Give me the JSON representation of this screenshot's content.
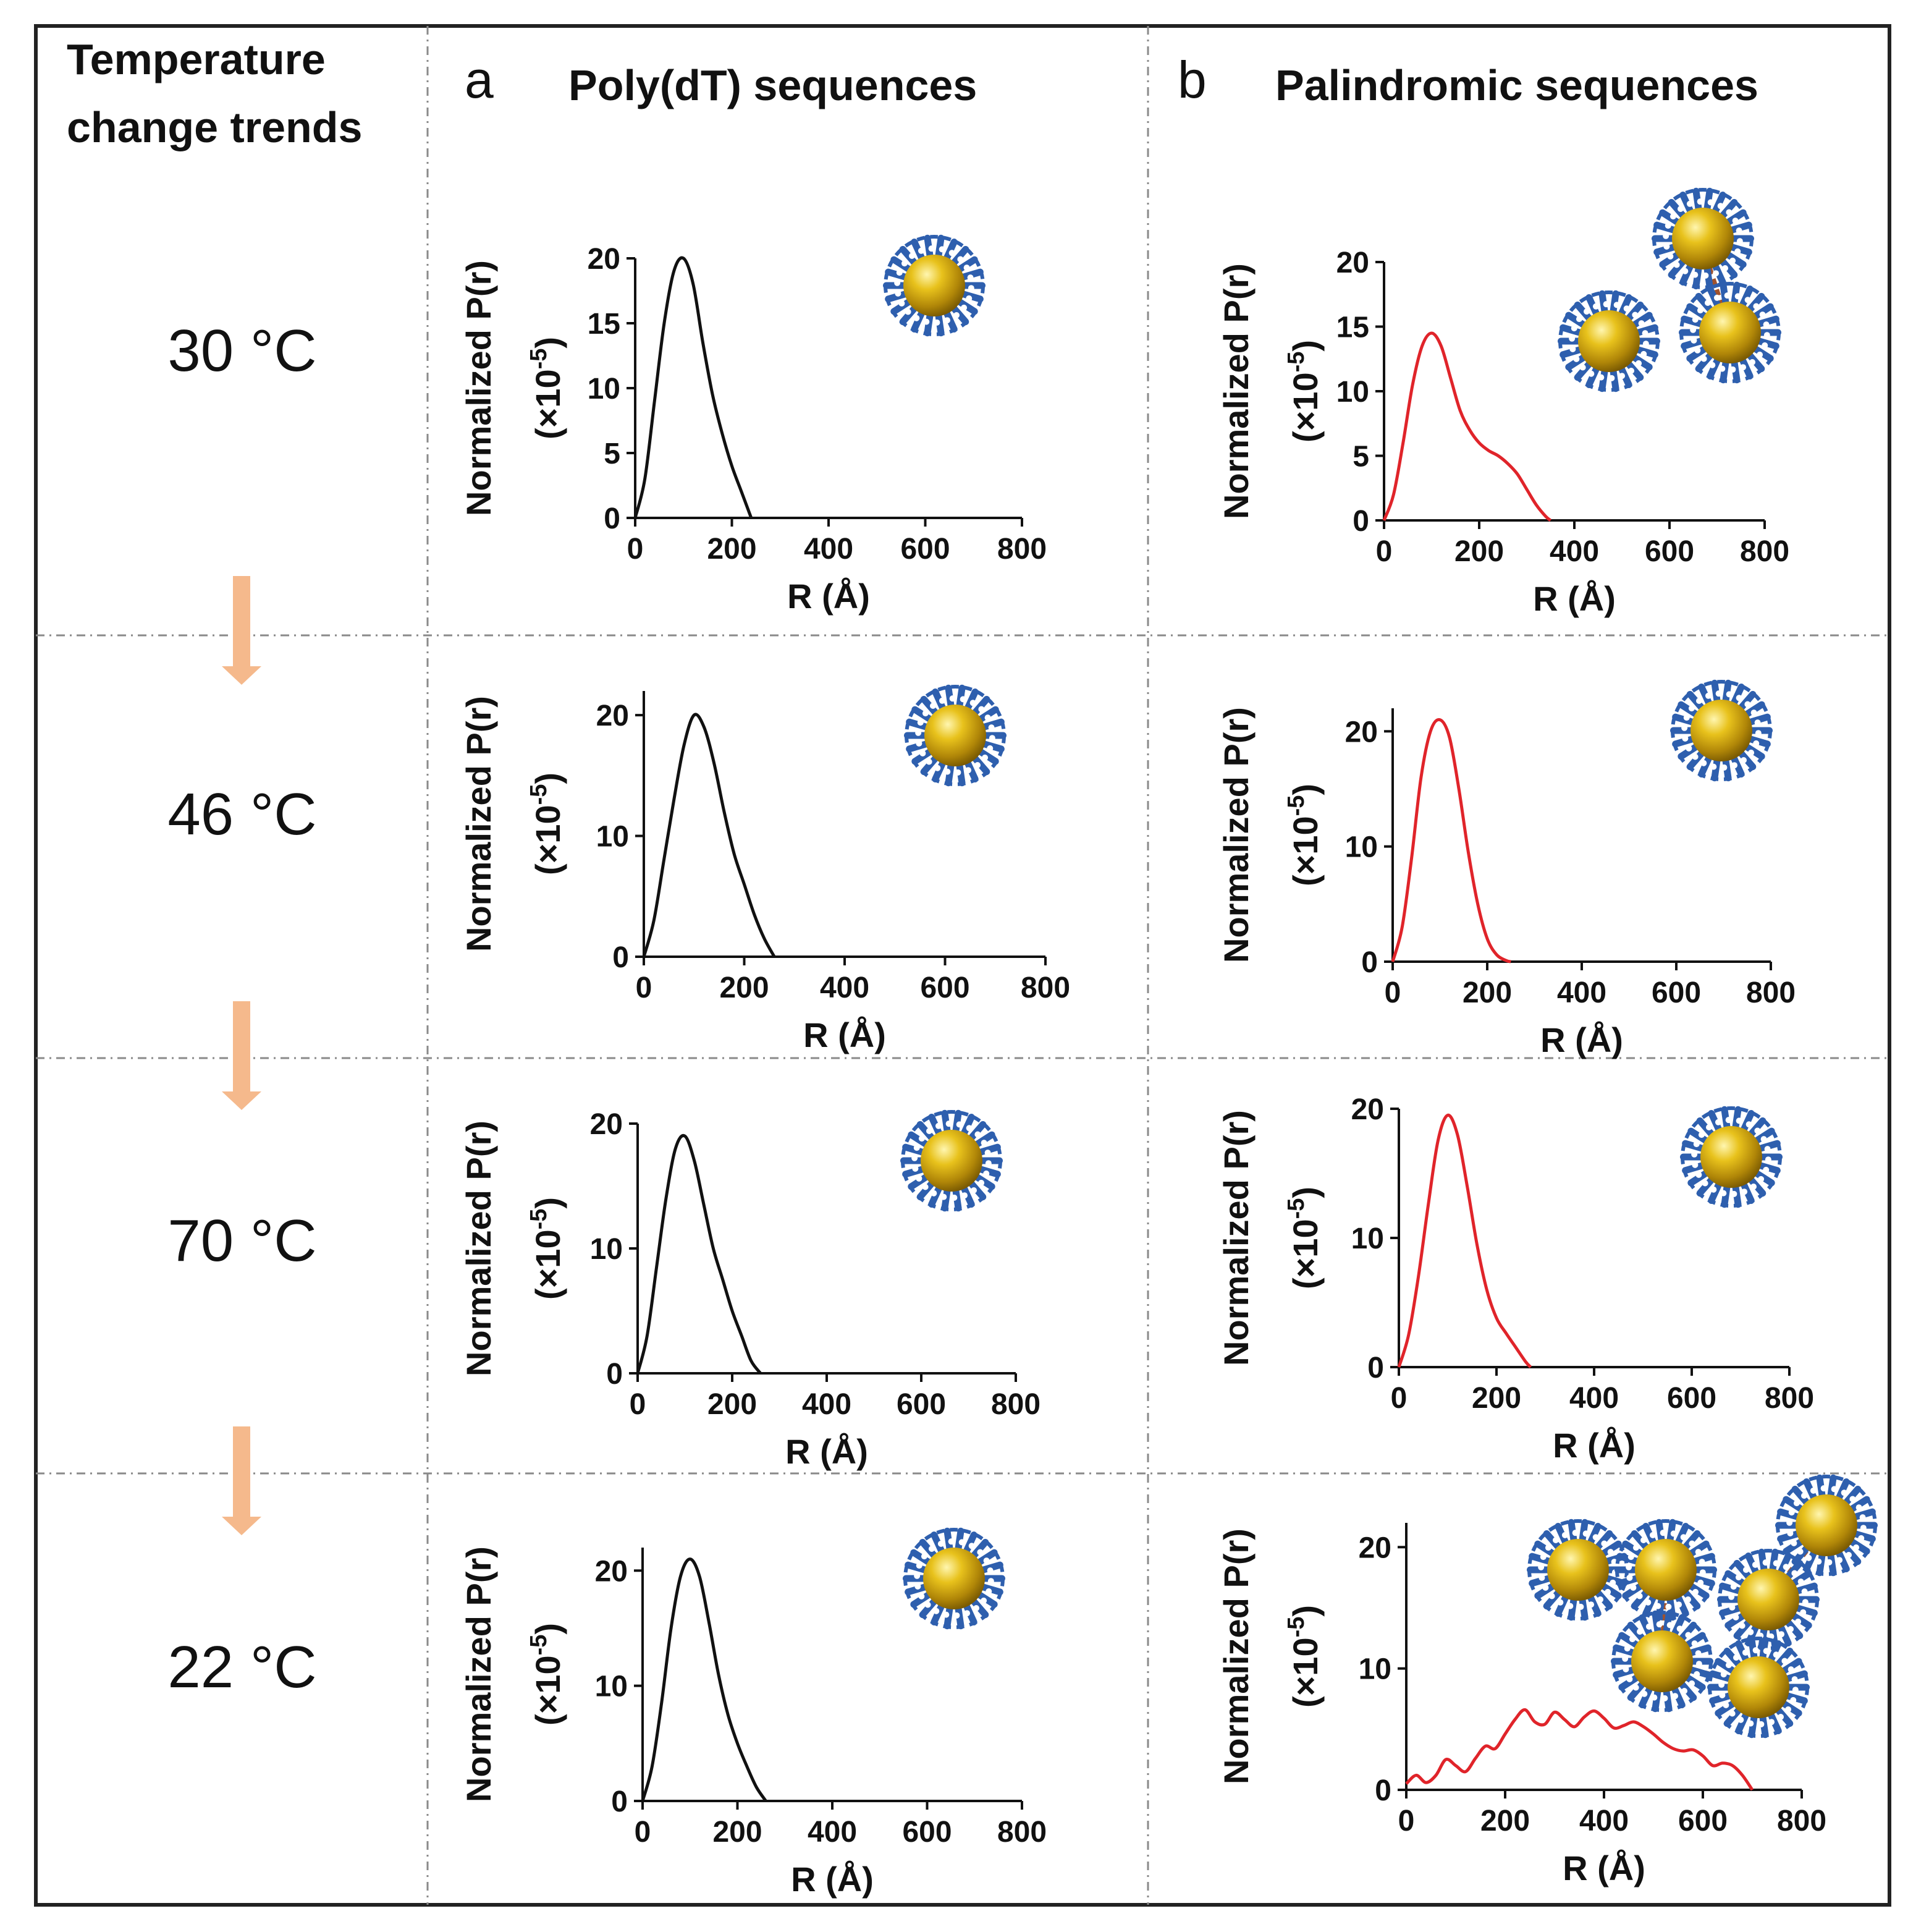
{
  "header": {
    "trend_title_line1": "Temperature",
    "trend_title_line2": "change trends",
    "panel_a_letter": "a",
    "panel_a_title": "Poly(dT) sequences",
    "panel_b_letter": "b",
    "panel_b_title": "Palindromic sequences"
  },
  "temperatures": [
    "30 °C",
    "46 °C",
    "70 °C",
    "22 °C"
  ],
  "colors": {
    "poly_dt_curve": "#111111",
    "palindromic_curve": "#e0242a",
    "arrow": "#f5b98c",
    "gold": "#d4a90f",
    "dna_shell": "#2e5fae",
    "link": "#a0522d",
    "divider": "#8a8a8a"
  },
  "icons": {
    "single_particle": "gold-nanoparticle-icon",
    "cluster": "nanoparticle-cluster-icon"
  },
  "chart_data": [
    {
      "id": "a-30",
      "type": "line",
      "panel": "a",
      "temperature": "30 °C",
      "ylabel": "Normalized P(r)",
      "yunit": "(×10",
      "yexp": "-5",
      "xlabel": "R (Å)",
      "xlim": [
        0,
        800
      ],
      "ylim": [
        0,
        20
      ],
      "xticks": [
        0,
        200,
        400,
        600,
        800
      ],
      "yticks": [
        0,
        5,
        10,
        15,
        20
      ],
      "x": [
        0,
        20,
        40,
        60,
        80,
        100,
        120,
        140,
        160,
        180,
        200,
        220,
        240
      ],
      "y": [
        0,
        3,
        9,
        15,
        19,
        20,
        18,
        13.5,
        9.5,
        6.5,
        4,
        2,
        0
      ],
      "icon": "single",
      "color": "#111111"
    },
    {
      "id": "a-46",
      "type": "line",
      "panel": "a",
      "temperature": "46 °C",
      "ylabel": "Normalized P(r)",
      "yunit": "(×10",
      "yexp": "-5",
      "xlabel": "R (Å)",
      "xlim": [
        0,
        800
      ],
      "ylim": [
        0,
        22
      ],
      "xticks": [
        0,
        200,
        400,
        600,
        800
      ],
      "yticks": [
        0,
        10,
        20
      ],
      "x": [
        0,
        20,
        40,
        60,
        80,
        100,
        120,
        140,
        160,
        180,
        200,
        220,
        240,
        260
      ],
      "y": [
        0,
        3,
        8,
        13,
        17.5,
        20,
        19,
        16,
        12,
        8.5,
        6,
        3.5,
        1.5,
        0
      ],
      "icon": "single",
      "color": "#111111"
    },
    {
      "id": "a-70",
      "type": "line",
      "panel": "a",
      "temperature": "70 °C",
      "ylabel": "Normalized P(r)",
      "yunit": "(×10",
      "yexp": "-5",
      "xlabel": "R (Å)",
      "xlim": [
        0,
        800
      ],
      "ylim": [
        0,
        20
      ],
      "xticks": [
        0,
        200,
        400,
        600,
        800
      ],
      "yticks": [
        0,
        10,
        20
      ],
      "x": [
        0,
        20,
        40,
        60,
        80,
        100,
        120,
        140,
        160,
        180,
        200,
        220,
        240,
        260
      ],
      "y": [
        0,
        3,
        8.5,
        14,
        18,
        19,
        17,
        13.5,
        10,
        7.5,
        5,
        3,
        1,
        0
      ],
      "icon": "single",
      "color": "#111111"
    },
    {
      "id": "a-22",
      "type": "line",
      "panel": "a",
      "temperature": "22 °C",
      "ylabel": "Normalized P(r)",
      "yunit": "(×10",
      "yexp": "-5",
      "xlabel": "R (Å)",
      "xlim": [
        0,
        800
      ],
      "ylim": [
        0,
        22
      ],
      "xticks": [
        0,
        200,
        400,
        600,
        800
      ],
      "yticks": [
        0,
        10,
        20
      ],
      "x": [
        0,
        20,
        40,
        60,
        80,
        100,
        120,
        140,
        160,
        180,
        200,
        220,
        240,
        260
      ],
      "y": [
        0,
        3,
        8.5,
        15,
        19.5,
        21,
        19.5,
        15.5,
        11,
        7.5,
        5,
        3,
        1.2,
        0
      ],
      "icon": "single",
      "color": "#111111"
    },
    {
      "id": "b-30",
      "type": "line",
      "panel": "b",
      "temperature": "30 °C",
      "ylabel": "Normalized P(r)",
      "yunit": "(×10",
      "yexp": "-5",
      "xlabel": "R (Å)",
      "xlim": [
        0,
        800
      ],
      "ylim": [
        0,
        20
      ],
      "xticks": [
        0,
        200,
        400,
        600,
        800
      ],
      "yticks": [
        0,
        5,
        10,
        15,
        20
      ],
      "x": [
        0,
        20,
        40,
        60,
        80,
        100,
        120,
        140,
        160,
        180,
        200,
        220,
        240,
        260,
        280,
        300,
        320,
        340,
        350
      ],
      "y": [
        0,
        2,
        6,
        10.5,
        13.5,
        14.5,
        13.5,
        11,
        8.5,
        7,
        6,
        5.4,
        5,
        4.4,
        3.6,
        2.4,
        1.2,
        0.3,
        0
      ],
      "icon": "cluster3",
      "color": "#e0242a"
    },
    {
      "id": "b-46",
      "type": "line",
      "panel": "b",
      "temperature": "46 °C",
      "ylabel": "Normalized P(r)",
      "yunit": "(×10",
      "yexp": "-5",
      "xlabel": "R (Å)",
      "xlim": [
        0,
        800
      ],
      "ylim": [
        0,
        22
      ],
      "xticks": [
        0,
        200,
        400,
        600,
        800
      ],
      "yticks": [
        0,
        10,
        20
      ],
      "x": [
        0,
        20,
        40,
        60,
        80,
        100,
        120,
        140,
        160,
        180,
        200,
        220,
        240,
        250
      ],
      "y": [
        0,
        3,
        9,
        16,
        20,
        21,
        19.5,
        15,
        9.5,
        5,
        2,
        0.6,
        0.1,
        0
      ],
      "icon": "single",
      "color": "#e0242a"
    },
    {
      "id": "b-70",
      "type": "line",
      "panel": "b",
      "temperature": "70 °C",
      "ylabel": "Normalized P(r)",
      "yunit": "(×10",
      "yexp": "-5",
      "xlabel": "R (Å)",
      "xlim": [
        0,
        800
      ],
      "ylim": [
        0,
        20
      ],
      "xticks": [
        0,
        200,
        400,
        600,
        800
      ],
      "yticks": [
        0,
        10,
        20
      ],
      "x": [
        0,
        20,
        40,
        60,
        80,
        100,
        120,
        140,
        160,
        180,
        200,
        220,
        240,
        260,
        270
      ],
      "y": [
        0,
        2.5,
        7,
        12.5,
        17.5,
        19.5,
        18,
        14,
        9.5,
        6,
        3.8,
        2.6,
        1.5,
        0.4,
        0
      ],
      "icon": "single",
      "color": "#e0242a"
    },
    {
      "id": "b-22",
      "type": "line",
      "panel": "b",
      "temperature": "22 °C",
      "ylabel": "Normalized P(r)",
      "yunit": "(×10",
      "yexp": "-5",
      "xlabel": "R (Å)",
      "xlim": [
        0,
        800
      ],
      "ylim": [
        0,
        22
      ],
      "xticks": [
        0,
        200,
        400,
        600,
        800
      ],
      "yticks": [
        0,
        10,
        20
      ],
      "x": [
        0,
        20,
        40,
        60,
        80,
        100,
        120,
        140,
        160,
        180,
        200,
        220,
        240,
        260,
        280,
        300,
        320,
        340,
        360,
        380,
        400,
        420,
        440,
        460,
        480,
        500,
        520,
        540,
        560,
        580,
        600,
        620,
        640,
        660,
        680,
        700
      ],
      "y": [
        0.5,
        1.2,
        0.6,
        1.2,
        2.5,
        2.0,
        1.5,
        2.6,
        3.6,
        3.4,
        4.6,
        5.8,
        6.6,
        5.6,
        5.4,
        6.4,
        5.8,
        5.2,
        6.0,
        6.5,
        5.9,
        5.1,
        5.3,
        5.6,
        5.2,
        4.6,
        3.9,
        3.4,
        3.2,
        3.3,
        2.8,
        2.0,
        2.2,
        2.0,
        1.2,
        0
      ],
      "icon": "cluster7",
      "color": "#e0242a"
    }
  ]
}
